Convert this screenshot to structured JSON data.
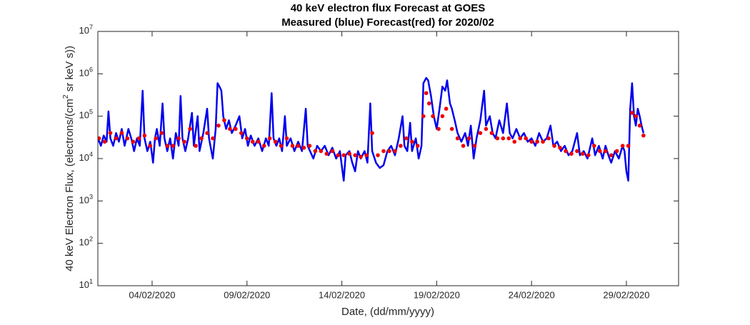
{
  "chart_data": {
    "type": "line",
    "title": "40 keV electron flux Forecast at GOES",
    "subtitle": "Measured (blue) Forecast(red) for 2020/02",
    "xlabel": "Date, (dd/mm/yyyy)",
    "ylabel": "40 keV Electron Flux, (electrons/(cm^2 sr keV s))",
    "log_y": true,
    "grid": false,
    "xlim": [
      1.14,
      31.75
    ],
    "xticks": [
      {
        "value": 4,
        "label": "04/02/2020"
      },
      {
        "value": 9,
        "label": "09/02/2020"
      },
      {
        "value": 14,
        "label": "14/02/2020"
      },
      {
        "value": 19,
        "label": "19/02/2020"
      },
      {
        "value": 24,
        "label": "24/02/2020"
      },
      {
        "value": 29,
        "label": "29/02/2020"
      }
    ],
    "ylim": [
      10,
      10000000
    ],
    "yticks": [
      {
        "value": 10,
        "label": "10^1"
      },
      {
        "value": 100,
        "label": "10^2"
      },
      {
        "value": 1000,
        "label": "10^3"
      },
      {
        "value": 10000,
        "label": "10^4"
      },
      {
        "value": 100000,
        "label": "10^5"
      },
      {
        "value": 1000000,
        "label": "10^6"
      },
      {
        "value": 10000000,
        "label": "10^7"
      }
    ],
    "series": [
      {
        "color": "#0000ee",
        "style": "line",
        "x": [
          1.15,
          1.3,
          1.45,
          1.6,
          1.7,
          1.8,
          1.95,
          2.1,
          2.25,
          2.4,
          2.55,
          2.75,
          2.9,
          3.05,
          3.2,
          3.35,
          3.5,
          3.6,
          3.75,
          3.9,
          4.05,
          4.15,
          4.25,
          4.4,
          4.55,
          4.65,
          4.8,
          4.95,
          5.1,
          5.25,
          5.4,
          5.5,
          5.6,
          5.75,
          5.9,
          6.1,
          6.2,
          6.4,
          6.5,
          6.7,
          6.9,
          7.0,
          7.2,
          7.35,
          7.45,
          7.55,
          7.65,
          7.75,
          7.9,
          8.05,
          8.2,
          8.4,
          8.6,
          8.75,
          8.9,
          9.05,
          9.2,
          9.4,
          9.6,
          9.8,
          10.0,
          10.15,
          10.3,
          10.4,
          10.55,
          10.7,
          10.85,
          11.0,
          11.1,
          11.3,
          11.5,
          11.7,
          11.9,
          12.1,
          12.2,
          12.5,
          12.7,
          12.9,
          13.1,
          13.3,
          13.5,
          13.7,
          13.9,
          14.1,
          14.2,
          14.4,
          14.55,
          14.7,
          14.85,
          15.0,
          15.2,
          15.35,
          15.5,
          15.6,
          15.8,
          16.0,
          16.2,
          16.4,
          16.6,
          16.8,
          17.0,
          17.2,
          17.3,
          17.45,
          17.6,
          17.7,
          17.9,
          18.05,
          18.2,
          18.3,
          18.45,
          18.55,
          18.7,
          18.85,
          19.0,
          19.15,
          19.3,
          19.45,
          19.55,
          19.7,
          19.8,
          19.95,
          20.1,
          20.3,
          20.5,
          20.65,
          20.8,
          20.95,
          21.1,
          21.3,
          21.5,
          21.6,
          21.8,
          21.95,
          22.1,
          22.3,
          22.5,
          22.7,
          22.85,
          23.0,
          23.2,
          23.4,
          23.6,
          23.8,
          24.0,
          24.2,
          24.4,
          24.6,
          24.8,
          25.0,
          25.15,
          25.35,
          25.55,
          25.75,
          25.95,
          26.15,
          26.4,
          26.55,
          26.75,
          26.95,
          27.2,
          27.35,
          27.55,
          27.75,
          27.9,
          28.05,
          28.2,
          28.4,
          28.6,
          28.8,
          28.9,
          29.0,
          29.1,
          29.2,
          29.3,
          29.4,
          29.5,
          29.6,
          29.7,
          29.8,
          29.9
        ],
        "values": [
          30000,
          20000,
          35000,
          25000,
          130000,
          30000,
          20000,
          40000,
          25000,
          50000,
          20000,
          50000,
          30000,
          15000,
          30000,
          20000,
          400000,
          30000,
          15000,
          25000,
          8000,
          30000,
          50000,
          20000,
          200000,
          30000,
          15000,
          30000,
          10000,
          40000,
          20000,
          300000,
          30000,
          15000,
          30000,
          120000,
          20000,
          100000,
          15000,
          40000,
          150000,
          30000,
          10000,
          50000,
          600000,
          500000,
          400000,
          100000,
          50000,
          80000,
          40000,
          60000,
          100000,
          30000,
          50000,
          20000,
          35000,
          20000,
          30000,
          15000,
          30000,
          20000,
          350000,
          30000,
          20000,
          30000,
          15000,
          100000,
          20000,
          30000,
          15000,
          25000,
          15000,
          150000,
          20000,
          10000,
          20000,
          15000,
          20000,
          12000,
          18000,
          10000,
          15000,
          3000,
          12000,
          15000,
          8000,
          5000,
          15000,
          10000,
          15000,
          8000,
          200000,
          15000,
          8000,
          6000,
          7000,
          15000,
          20000,
          12000,
          30000,
          100000,
          20000,
          15000,
          70000,
          15000,
          30000,
          10000,
          20000,
          600000,
          800000,
          700000,
          300000,
          100000,
          50000,
          150000,
          500000,
          400000,
          700000,
          200000,
          150000,
          80000,
          40000,
          25000,
          40000,
          20000,
          60000,
          10000,
          30000,
          80000,
          400000,
          60000,
          100000,
          40000,
          30000,
          80000,
          40000,
          200000,
          40000,
          30000,
          50000,
          30000,
          40000,
          25000,
          30000,
          20000,
          40000,
          25000,
          30000,
          60000,
          20000,
          25000,
          15000,
          20000,
          12000,
          15000,
          40000,
          12000,
          15000,
          10000,
          30000,
          12000,
          20000,
          10000,
          20000,
          12000,
          8000,
          15000,
          10000,
          20000,
          15000,
          5000,
          3000,
          150000,
          600000,
          100000,
          60000,
          150000,
          100000,
          60000,
          40000
        ]
      },
      {
        "color": "#ee0000",
        "style": "markers",
        "x": [
          1.2,
          1.5,
          1.8,
          2.1,
          2.4,
          2.7,
          3.0,
          3.3,
          3.6,
          3.9,
          4.2,
          4.5,
          4.8,
          5.1,
          5.4,
          5.7,
          6.0,
          6.3,
          6.6,
          6.9,
          7.2,
          7.5,
          7.8,
          8.1,
          8.4,
          8.7,
          9.0,
          9.3,
          9.6,
          9.9,
          10.2,
          10.5,
          10.8,
          11.1,
          11.4,
          11.7,
          12.0,
          12.3,
          12.6,
          12.9,
          13.2,
          13.5,
          13.8,
          14.1,
          14.4,
          14.7,
          15.0,
          15.3,
          15.6,
          15.9,
          16.2,
          16.5,
          16.8,
          17.1,
          17.4,
          17.7,
          18.0,
          18.3,
          18.45,
          18.6,
          18.8,
          19.1,
          19.3,
          19.5,
          19.8,
          20.1,
          20.4,
          20.7,
          21.0,
          21.3,
          21.6,
          21.9,
          22.2,
          22.5,
          22.8,
          23.1,
          23.4,
          23.7,
          24.0,
          24.3,
          24.6,
          24.9,
          25.2,
          25.5,
          25.8,
          26.1,
          26.4,
          26.7,
          27.0,
          27.3,
          27.6,
          27.9,
          28.2,
          28.5,
          28.8,
          29.1,
          29.3,
          29.5,
          29.7,
          29.9
        ],
        "values": [
          30000,
          25000,
          40000,
          30000,
          40000,
          30000,
          25000,
          30000,
          35000,
          20000,
          30000,
          40000,
          20000,
          20000,
          30000,
          25000,
          50000,
          20000,
          30000,
          40000,
          30000,
          60000,
          80000,
          50000,
          50000,
          40000,
          30000,
          25000,
          25000,
          20000,
          30000,
          25000,
          20000,
          30000,
          20000,
          20000,
          18000,
          20000,
          15000,
          15000,
          13000,
          15000,
          12000,
          12000,
          13000,
          12000,
          11000,
          12000,
          40000,
          12000,
          15000,
          15000,
          15000,
          20000,
          30000,
          25000,
          20000,
          100000,
          350000,
          200000,
          100000,
          50000,
          100000,
          150000,
          50000,
          30000,
          20000,
          30000,
          20000,
          40000,
          50000,
          40000,
          30000,
          30000,
          30000,
          25000,
          30000,
          30000,
          25000,
          25000,
          25000,
          30000,
          20000,
          18000,
          15000,
          13000,
          15000,
          13000,
          12000,
          20000,
          15000,
          15000,
          12000,
          15000,
          20000,
          20000,
          120000,
          100000,
          60000,
          35000
        ]
      }
    ]
  }
}
